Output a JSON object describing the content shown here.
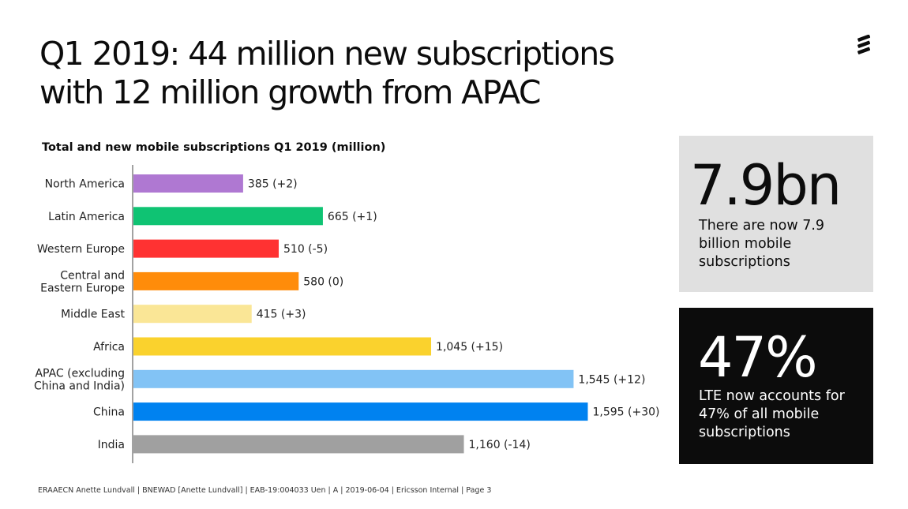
{
  "title": {
    "line1": "Q1 2019: 44 million new subscriptions",
    "line2": "with 12 million growth from APAC"
  },
  "chart_data": {
    "type": "bar",
    "orientation": "horizontal",
    "title": "Total and new mobile subscriptions Q1 2019 (million)",
    "categories": [
      [
        "North America"
      ],
      [
        "Latin America"
      ],
      [
        "Western Europe"
      ],
      [
        "Central and",
        "Eastern Europe"
      ],
      [
        "Middle East"
      ],
      [
        "Africa"
      ],
      [
        "APAC (excluding",
        "China and India)"
      ],
      [
        "China"
      ],
      [
        "India"
      ]
    ],
    "values": [
      385,
      665,
      510,
      580,
      415,
      1045,
      1545,
      1595,
      1160
    ],
    "labels": [
      "385 (+2)",
      "665 (+1)",
      "510 (-5)",
      "580 (0)",
      "415 (+3)",
      "1,045 (+15)",
      "1,545 (+12)",
      "1,595 (+30)",
      "1,160 (-14)"
    ],
    "colors": [
      "#af78d2",
      "#0fc373",
      "#ff3232",
      "#ff8c0a",
      "#fae696",
      "#fad22d",
      "#82c3f5",
      "#0082f0",
      "#a0a0a0"
    ],
    "xlim": [
      0,
      1600
    ],
    "grid": false,
    "legend": "none"
  },
  "cards": {
    "light": {
      "big": "7.9bn",
      "text": "There are now 7.9 billion mobile subscriptions"
    },
    "dark": {
      "big": "47%",
      "text": "LTE now accounts for 47% of all mobile subscriptions"
    }
  },
  "footer": "ERAAECN Anette Lundvall  |  BNEWAD [Anette Lundvall]  |  EAB-19:004033 Uen  |  A  |  2019-06-04  |  Ericsson Internal  |  Page 3"
}
